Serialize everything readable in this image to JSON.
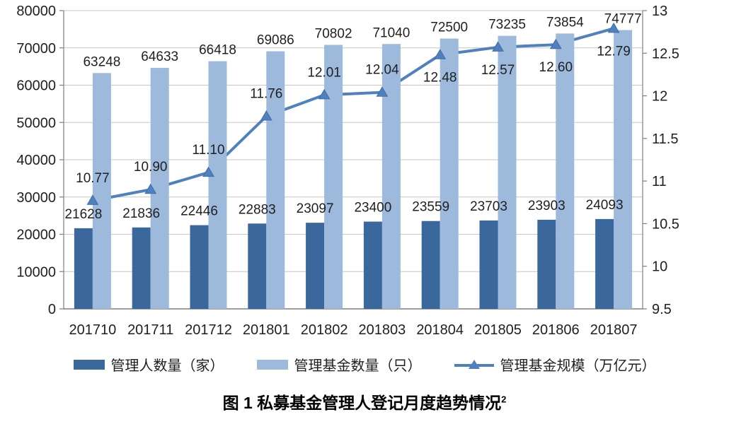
{
  "figure": {
    "caption": "图 1 私募基金管理人登记月度趋势情况",
    "footnote_mark": "2"
  },
  "legend": {
    "items": [
      {
        "label": "管理人数量（家）",
        "swatch": "bar",
        "color": "#3a689c"
      },
      {
        "label": "管理基金数量（只）",
        "swatch": "bar",
        "color": "#9db9dc"
      },
      {
        "label": "管理基金规模（万亿元）",
        "swatch": "line-triangle",
        "color": "#4e81bd"
      }
    ]
  },
  "chart_data": {
    "type": "bar",
    "subtype": "combo-bar-line-dual-axis",
    "categories": [
      "201710",
      "201711",
      "201712",
      "201801",
      "201802",
      "201803",
      "201804",
      "201805",
      "201806",
      "201807"
    ],
    "series": [
      {
        "name": "管理人数量（家）",
        "type": "bar",
        "axis": "left",
        "color": "#3a689c",
        "values": [
          21628,
          21836,
          22446,
          22883,
          23097,
          23400,
          23559,
          23703,
          23903,
          24093
        ]
      },
      {
        "name": "管理基金数量（只）",
        "type": "bar",
        "axis": "left",
        "color": "#9db9dc",
        "values": [
          63248,
          64633,
          66418,
          69086,
          70802,
          71040,
          72500,
          73235,
          73854,
          74777
        ]
      },
      {
        "name": "管理基金规模（万亿元）",
        "type": "line",
        "axis": "right",
        "color": "#4e81bd",
        "marker": "triangle",
        "values": [
          10.77,
          10.9,
          11.1,
          11.76,
          12.01,
          12.04,
          12.48,
          12.57,
          12.6,
          12.79
        ],
        "label_positions": [
          "above",
          "above",
          "above",
          "above",
          "above",
          "above",
          "below",
          "below",
          "below",
          "below"
        ]
      }
    ],
    "left_axis": {
      "min": 0,
      "max": 80000,
      "step": 10000,
      "ticks": [
        "0",
        "10000",
        "20000",
        "30000",
        "40000",
        "50000",
        "60000",
        "70000",
        "80000"
      ]
    },
    "right_axis": {
      "min": 9.5,
      "max": 13,
      "step": 0.5,
      "ticks": [
        "9.5",
        "10",
        "10.5",
        "11",
        "11.5",
        "12",
        "12.5",
        "13"
      ]
    },
    "grid": true,
    "data_labels": true,
    "legend_position": "bottom",
    "colors": {
      "gridline": "#c6c6c6",
      "axis": "#7f7f7f",
      "label_text": "#1f1f1f"
    }
  }
}
